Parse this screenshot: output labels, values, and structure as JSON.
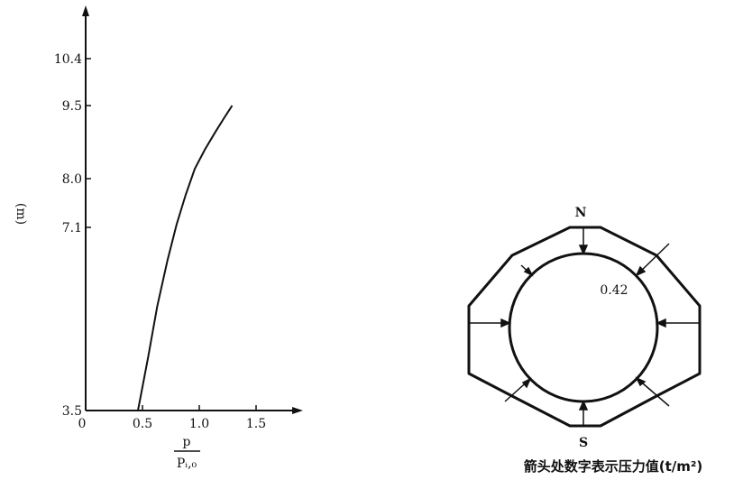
{
  "chart_data": [
    {
      "type": "line",
      "title": "",
      "xlabel_numerator": "p",
      "xlabel_denominator": "Pᵢ,₀",
      "ylabel": "(m)",
      "xlim": [
        0,
        1.6
      ],
      "ylim": [
        3.5,
        11.5
      ],
      "x_ticks": [
        0,
        0.5,
        1.0,
        1.5
      ],
      "x_tick_labels": [
        "0",
        "0.5",
        "1.0",
        "1.5"
      ],
      "y_ticks": [
        3.5,
        7.1,
        8.0,
        9.5,
        10.4
      ],
      "y_tick_labels": [
        "3.5",
        "7.1",
        "8.0",
        "9.5",
        "10.4"
      ],
      "grid": false,
      "series": [
        {
          "x": [
            0.46,
            0.55,
            0.63,
            0.72,
            0.8,
            0.88,
            0.96,
            1.05,
            1.14,
            1.22,
            1.29
          ],
          "y": [
            3.5,
            4.55,
            5.55,
            6.45,
            7.15,
            7.7,
            8.2,
            8.6,
            8.95,
            9.25,
            9.5
          ]
        }
      ]
    },
    {
      "type": "diagram",
      "north_label": "N",
      "south_label": "S",
      "value_label": "0.42",
      "caption": "箭头处数字表示压力值(t/m²)"
    }
  ]
}
